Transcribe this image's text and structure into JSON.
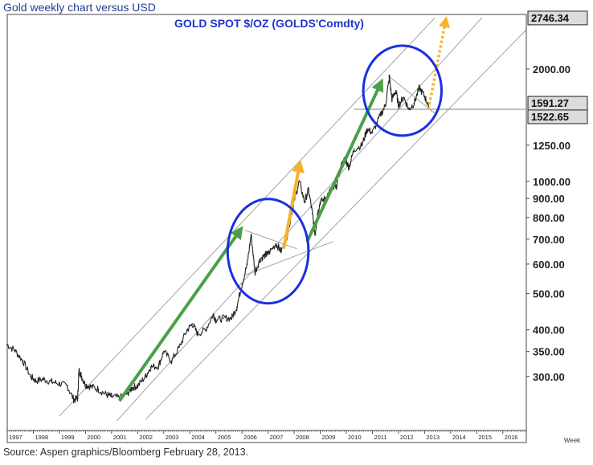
{
  "header": {
    "caption": "Gold weekly chart versus USD"
  },
  "footer": {
    "source": "Source: Aspen graphics/Bloomberg February 28, 2013."
  },
  "chart_data": {
    "type": "line",
    "title": "GOLD  SPOT  $/OZ  (GOLDS'Comdty)",
    "y_scale": "log",
    "ylim": [
      215,
      2800
    ],
    "xlim": [
      1997.0,
      2016.9
    ],
    "x_unit_label": "Week",
    "grid": false,
    "x_ticks": [
      "1997",
      "1998",
      "1999",
      "2000",
      "2001",
      "2002",
      "2003",
      "2004",
      "2005",
      "2006",
      "2007",
      "2008",
      "2009",
      "2010",
      "2011",
      "2012",
      "2013",
      "2014",
      "2015",
      "2016"
    ],
    "y_ticks": [
      300,
      350,
      400,
      500,
      600,
      700,
      800,
      900,
      1000,
      1250,
      2000
    ],
    "y_tick_labels": [
      "300.00",
      "350.00",
      "400.00",
      "500.00",
      "600.00",
      "700.00",
      "800.00",
      "900.00",
      "1000.00",
      "1250.00",
      "2000.00"
    ],
    "price_tags": [
      {
        "value": 2746.34,
        "label": "2746.34"
      },
      {
        "value": 1591.27,
        "label": "1591.27"
      },
      {
        "value": 1522.65,
        "label": "1522.65"
      }
    ],
    "series": [
      {
        "color": "#222222",
        "points": [
          [
            1997.0,
            365
          ],
          [
            1997.3,
            352
          ],
          [
            1997.6,
            330
          ],
          [
            1997.9,
            300
          ],
          [
            1998.1,
            292
          ],
          [
            1998.4,
            295
          ],
          [
            1998.7,
            290
          ],
          [
            1999.0,
            287
          ],
          [
            1999.3,
            283
          ],
          [
            1999.55,
            260
          ],
          [
            1999.7,
            262
          ],
          [
            1999.75,
            312
          ],
          [
            1999.85,
            300
          ],
          [
            2000.0,
            285
          ],
          [
            2000.2,
            282
          ],
          [
            2000.5,
            277
          ],
          [
            2000.8,
            268
          ],
          [
            2001.0,
            265
          ],
          [
            2001.3,
            263
          ],
          [
            2001.6,
            270
          ],
          [
            2001.8,
            280
          ],
          [
            2002.0,
            283
          ],
          [
            2002.3,
            300
          ],
          [
            2002.5,
            318
          ],
          [
            2002.8,
            320
          ],
          [
            2003.0,
            350
          ],
          [
            2003.3,
            330
          ],
          [
            2003.6,
            360
          ],
          [
            2003.9,
            400
          ],
          [
            2004.1,
            415
          ],
          [
            2004.3,
            390
          ],
          [
            2004.6,
            400
          ],
          [
            2004.9,
            440
          ],
          [
            2005.0,
            425
          ],
          [
            2005.3,
            430
          ],
          [
            2005.6,
            430
          ],
          [
            2005.8,
            460
          ],
          [
            2006.0,
            530
          ],
          [
            2006.2,
            600
          ],
          [
            2006.35,
            720
          ],
          [
            2006.5,
            570
          ],
          [
            2006.7,
            620
          ],
          [
            2006.9,
            635
          ],
          [
            2007.0,
            640
          ],
          [
            2007.3,
            680
          ],
          [
            2007.5,
            650
          ],
          [
            2007.7,
            700
          ],
          [
            2007.9,
            820
          ],
          [
            2008.0,
            890
          ],
          [
            2008.2,
            1000
          ],
          [
            2008.4,
            880
          ],
          [
            2008.55,
            950
          ],
          [
            2008.7,
            820
          ],
          [
            2008.8,
            720
          ],
          [
            2008.9,
            820
          ],
          [
            2009.0,
            880
          ],
          [
            2009.2,
            900
          ],
          [
            2009.4,
            950
          ],
          [
            2009.6,
            960
          ],
          [
            2009.8,
            1100
          ],
          [
            2009.95,
            1150
          ],
          [
            2010.1,
            1090
          ],
          [
            2010.3,
            1220
          ],
          [
            2010.6,
            1250
          ],
          [
            2010.8,
            1380
          ],
          [
            2011.0,
            1350
          ],
          [
            2011.3,
            1500
          ],
          [
            2011.5,
            1600
          ],
          [
            2011.65,
            1900
          ],
          [
            2011.75,
            1660
          ],
          [
            2011.9,
            1750
          ],
          [
            2012.0,
            1600
          ],
          [
            2012.2,
            1680
          ],
          [
            2012.4,
            1560
          ],
          [
            2012.6,
            1620
          ],
          [
            2012.8,
            1780
          ],
          [
            2013.0,
            1690
          ],
          [
            2013.15,
            1591
          ]
        ]
      }
    ],
    "annotations": [
      {
        "kind": "channel_line",
        "color": "#999999",
        "points": [
          [
            1999.0,
            235
          ],
          [
            2013.4,
            2746
          ]
        ]
      },
      {
        "kind": "channel_line",
        "color": "#999999",
        "points": [
          [
            2001.2,
            228
          ],
          [
            2015.2,
            2746
          ]
        ]
      },
      {
        "kind": "channel_line",
        "color": "#999999",
        "points": [
          [
            2002.3,
            230
          ],
          [
            2016.9,
            2550
          ]
        ]
      },
      {
        "kind": "triangle_line",
        "color": "#999999",
        "points": [
          [
            2006.1,
            740
          ],
          [
            2008.1,
            660
          ]
        ]
      },
      {
        "kind": "triangle_line",
        "color": "#999999",
        "points": [
          [
            2006.1,
            560
          ],
          [
            2009.5,
            690
          ]
        ]
      },
      {
        "kind": "triangle_line",
        "color": "#999999",
        "points": [
          [
            2011.6,
            1920
          ],
          [
            2013.4,
            1520
          ]
        ]
      },
      {
        "kind": "horizontal_line",
        "color": "#777777",
        "value": 1560,
        "from": 2010.3,
        "to": 2016.9
      },
      {
        "kind": "arrow",
        "color": "#4aa04a",
        "style": "solid",
        "points": [
          [
            2001.3,
            258
          ],
          [
            2005.9,
            735
          ]
        ]
      },
      {
        "kind": "arrow",
        "color": "#4aa04a",
        "style": "solid",
        "points": [
          [
            2008.5,
            690
          ],
          [
            2011.3,
            1820
          ]
        ]
      },
      {
        "kind": "arrow",
        "color": "#f5b329",
        "style": "solid",
        "points": [
          [
            2007.6,
            660
          ],
          [
            2008.2,
            1100
          ]
        ]
      },
      {
        "kind": "arrow",
        "color": "#f5b329",
        "style": "dotted",
        "points": [
          [
            2013.15,
            1560
          ],
          [
            2013.8,
            2680
          ]
        ]
      },
      {
        "kind": "ellipse",
        "color": "#1b2fe0",
        "center": [
          2007.0,
          650
        ],
        "rx_years": 1.55,
        "ry_ratio": 1.38
      },
      {
        "kind": "ellipse",
        "color": "#1b2fe0",
        "center": [
          2012.15,
          1750
        ],
        "rx_years": 1.5,
        "ry_ratio": 1.32
      }
    ]
  }
}
